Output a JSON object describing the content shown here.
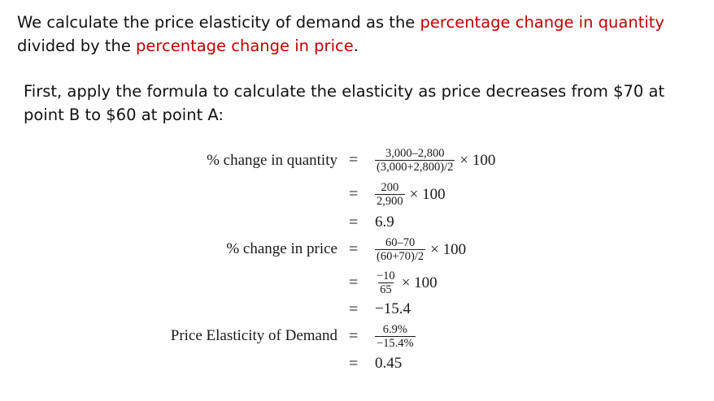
{
  "intro": {
    "text1": "We calculate the price elasticity of demand as the ",
    "hl1": "percentage change in quantity",
    "text2": " divided by the ",
    "hl2": "percentage change in price",
    "text3": "."
  },
  "step1": "First, apply the formula to calculate the elasticity as price decreases from $70 at point B to $60 at point A:",
  "math": {
    "eq_sign": "=",
    "times": "× 100",
    "quantity_label": "% change in quantity",
    "q_frac_num": "3,000–2,800",
    "q_frac_den": "(3,000+2,800)/2",
    "q2_num": "200",
    "q2_den": "2,900",
    "q_result": "6.9",
    "price_label": "% change in price",
    "p_frac_num": "60–70",
    "p_frac_den": "(60+70)/2",
    "p2_num": "−10",
    "p2_den": "65",
    "p_result": "−15.4",
    "ped_label": "Price Elasticity of Demand",
    "ped_num": "6.9%",
    "ped_den": "−15.4%",
    "ped_result": "0.45"
  },
  "colors": {
    "highlight": "#c00000",
    "text": "#111111"
  }
}
